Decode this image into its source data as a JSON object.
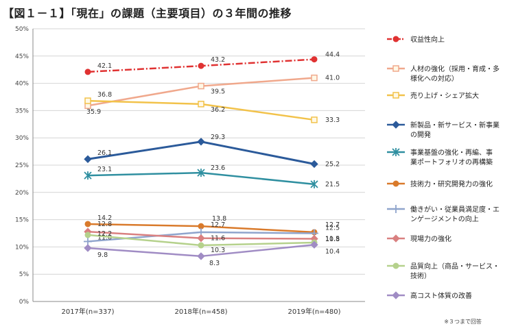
{
  "title": "【図１－１】「現在」の課題（主要項目）の３年間の推移",
  "footnote": "※３つまで回答",
  "chart_data": {
    "type": "line",
    "categories": [
      "2017年(n=337)",
      "2018年(n=458)",
      "2019年(n=480)"
    ],
    "ylim": [
      0,
      50
    ],
    "yticks": [
      "0%",
      "5%",
      "10%",
      "15%",
      "20%",
      "25%",
      "30%",
      "35%",
      "40%",
      "45%",
      "50%"
    ],
    "grid": true,
    "legend": "right",
    "series": [
      {
        "name": "収益性向上",
        "values": [
          42.1,
          43.2,
          44.4
        ],
        "color": "#e03232",
        "marker": "circle",
        "dashed": true,
        "labels": [
          "42.1",
          "43.2",
          "44.4"
        ]
      },
      {
        "name": "人材の強化（採用・育成・多様化への対応）",
        "values": [
          35.9,
          39.5,
          41.0
        ],
        "color": "#f0a88c",
        "marker": "square",
        "dashed": false,
        "labels": [
          "35.9",
          "39.5",
          "41.0"
        ]
      },
      {
        "name": "売り上げ・シェア拡大",
        "values": [
          36.8,
          36.2,
          33.3
        ],
        "color": "#f2c24a",
        "marker": "square",
        "dashed": false,
        "labels": [
          "36.8",
          "36.2",
          "33.3"
        ]
      },
      {
        "name": "新製品・新サービス・新事業の開発",
        "values": [
          26.1,
          29.3,
          25.2
        ],
        "color": "#2b5a9a",
        "marker": "diamond",
        "dashed": false,
        "labels": [
          "26.1",
          "29.3",
          "25.2"
        ]
      },
      {
        "name": "事業基盤の強化・再編、事業ポートフォリオの再構築",
        "values": [
          23.1,
          23.6,
          21.5
        ],
        "color": "#2f8fa0",
        "marker": "star",
        "dashed": false,
        "labels": [
          "23.1",
          "23.6",
          "21.5"
        ]
      },
      {
        "name": "技術力・研究開発力の強化",
        "values": [
          14.2,
          13.8,
          12.7
        ],
        "color": "#d97a2b",
        "marker": "circle",
        "dashed": false,
        "labels": [
          "14.2",
          "13.8",
          "12.7"
        ]
      },
      {
        "name": "働きがい・従業員満足度・エンゲージメントの向上",
        "values": [
          11.0,
          12.7,
          12.5
        ],
        "color": "#8fa4cc",
        "marker": "cross",
        "dashed": false,
        "labels": [
          "11.0",
          "12.7",
          "12.5"
        ]
      },
      {
        "name": "現場力の強化",
        "values": [
          12.8,
          11.6,
          11.5
        ],
        "color": "#d98080",
        "marker": "diamond",
        "dashed": false,
        "labels": [
          "12.8",
          "11.6",
          "11.5"
        ]
      },
      {
        "name": "品質向上（商品・サービス・技術）",
        "values": [
          12.2,
          10.3,
          10.8
        ],
        "color": "#b5d18c",
        "marker": "circle",
        "dashed": false,
        "labels": [
          "12.2",
          "10.3",
          "10.8"
        ]
      },
      {
        "name": "高コスト体質の改善",
        "values": [
          9.8,
          8.3,
          10.4
        ],
        "color": "#a08cc4",
        "marker": "diamond",
        "dashed": false,
        "labels": [
          "9.8",
          "8.3",
          "10.4"
        ]
      }
    ],
    "legend_entries": [
      [
        "収益性向上"
      ],
      [
        "人材の強化（採用・育成・多",
        "様化への対応）"
      ],
      [
        "売り上げ・シェア拡大"
      ],
      [
        "新製品・新サービス・新事業",
        "の開発"
      ],
      [
        "事業基盤の強化・再編、事",
        "業ポートフォリオの再構築"
      ],
      [
        "技術力・研究開発力の強化"
      ],
      [
        "働きがい・従業員満足度・エ",
        "ンゲージメントの向上"
      ],
      [
        "現場力の強化"
      ],
      [
        "品質向上（商品・サービス・",
        "技術）"
      ],
      [
        "高コスト体質の改善"
      ]
    ]
  }
}
